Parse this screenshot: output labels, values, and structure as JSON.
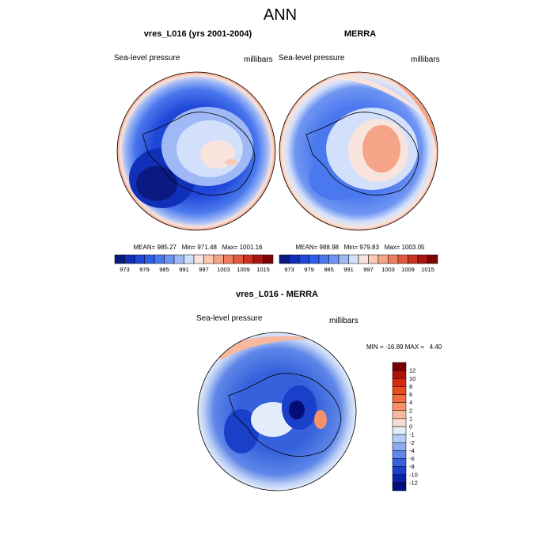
{
  "page_title": "ANN",
  "panels": [
    {
      "title": "vres_L016 (yrs 2001-2004)",
      "left_label": "Sea-level pressure",
      "right_label": "millibars",
      "stats": "MEAN= 985.27   Min= 971.48   Max= 1001.16"
    },
    {
      "title": "MERRA",
      "left_label": "Sea-level pressure",
      "right_label": "millibars",
      "stats": "MEAN= 988.98   Min= 979.83   Max= 1003.05"
    },
    {
      "title": "vres_L016 - MERRA",
      "left_label": "Sea-level pressure",
      "right_label": "millibars",
      "stats": "MIN = -16.89 MAX =   4.40"
    }
  ],
  "colorbar_top": {
    "labels": [
      "973",
      "979",
      "985",
      "991",
      "997",
      "1003",
      "1009",
      "1015"
    ],
    "colors": [
      "#0a1a80",
      "#1030b8",
      "#1e46d8",
      "#2f5fe8",
      "#4a78ee",
      "#6f95f2",
      "#9fb9f6",
      "#d2e0fb",
      "#f8e4dc",
      "#fbc8b2",
      "#f6a487",
      "#ef7f60",
      "#e35a3e",
      "#cc3422",
      "#a8160f",
      "#7c0606"
    ]
  },
  "colorbar_diff": {
    "labels": [
      "12",
      "10",
      "8",
      "6",
      "4",
      "2",
      "1",
      "0",
      "-1",
      "-2",
      "-4",
      "-6",
      "-8",
      "-10",
      "-12"
    ],
    "colors": [
      "#7a0000",
      "#b00f0a",
      "#d42a10",
      "#ea4a1c",
      "#f26c3e",
      "#f5906b",
      "#f8b8a0",
      "#f9dccf",
      "#e3ecfb",
      "#b8cdf5",
      "#8eabf0",
      "#5f86e8",
      "#3562dc",
      "#1a3fc8",
      "#0a21a8",
      "#040e78"
    ]
  },
  "map_colors": {
    "deep_blue": "#0a1a80",
    "mid_blue": "#1e46d8",
    "light_blue": "#6f95f2",
    "pale_blue": "#d2e0fb",
    "salmon": "#f6a487",
    "pale_salmon": "#f8e4dc",
    "coastline": "#000000"
  }
}
